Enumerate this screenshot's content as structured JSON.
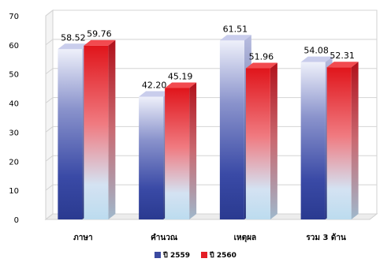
{
  "chart_data": {
    "type": "bar",
    "title": "",
    "xlabel": "",
    "ylabel": "",
    "ylim": [
      0,
      70
    ],
    "yticks": [
      0,
      10,
      20,
      30,
      40,
      50,
      60,
      70
    ],
    "grid": true,
    "legend_position": "bottom",
    "categories": [
      "ภาษา",
      "คำนวณ",
      "เหตุผล",
      "รวม  3  ด้าน"
    ],
    "series": [
      {
        "name": "ปี 2559",
        "values": [
          58.52,
          42.2,
          61.51,
          54.08
        ],
        "labels": [
          "58.52",
          "42.20",
          "61.51",
          "54.08"
        ],
        "color": "#3b4aa0"
      },
      {
        "name": "ปี 2560",
        "values": [
          59.76,
          45.19,
          51.96,
          52.31
        ],
        "labels": [
          "59.76",
          "45.19",
          "51.96",
          "52.31"
        ],
        "color": "#e41e26"
      }
    ]
  }
}
